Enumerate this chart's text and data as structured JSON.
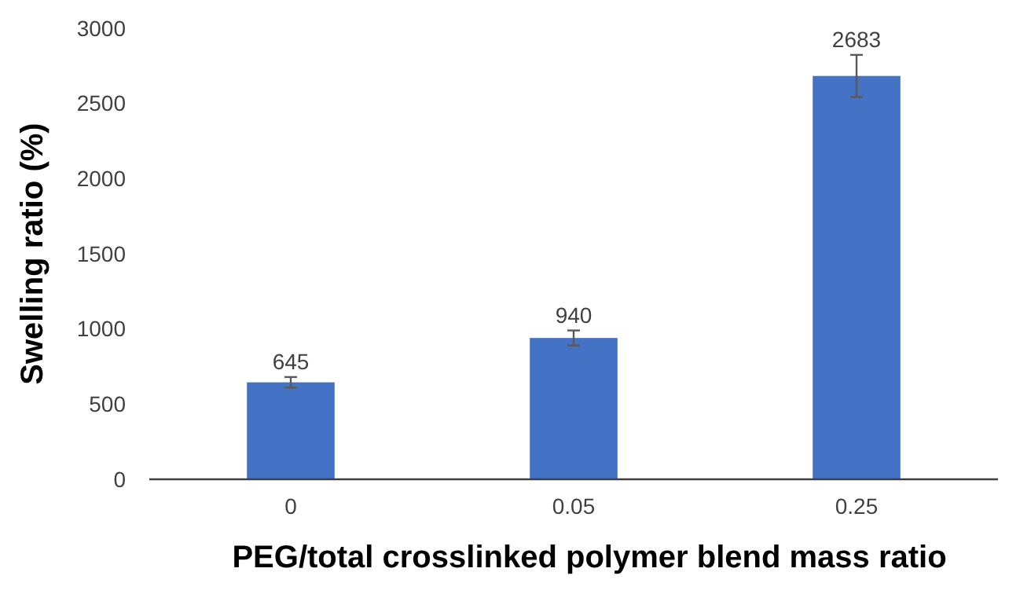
{
  "chart_data": {
    "type": "bar",
    "xlabel": "PEG/total crosslinked polymer blend mass ratio",
    "ylabel": "Swelling ratio (%)",
    "categories": [
      "0",
      "0.05",
      "0.25"
    ],
    "values": [
      645,
      940,
      2683
    ],
    "errors": [
      35,
      50,
      140
    ],
    "color": "#4472c4",
    "ylim": [
      0,
      3000
    ],
    "yticks": [
      0,
      500,
      1000,
      1500,
      2000,
      2500,
      3000
    ],
    "data_labels": true,
    "grid": false
  }
}
